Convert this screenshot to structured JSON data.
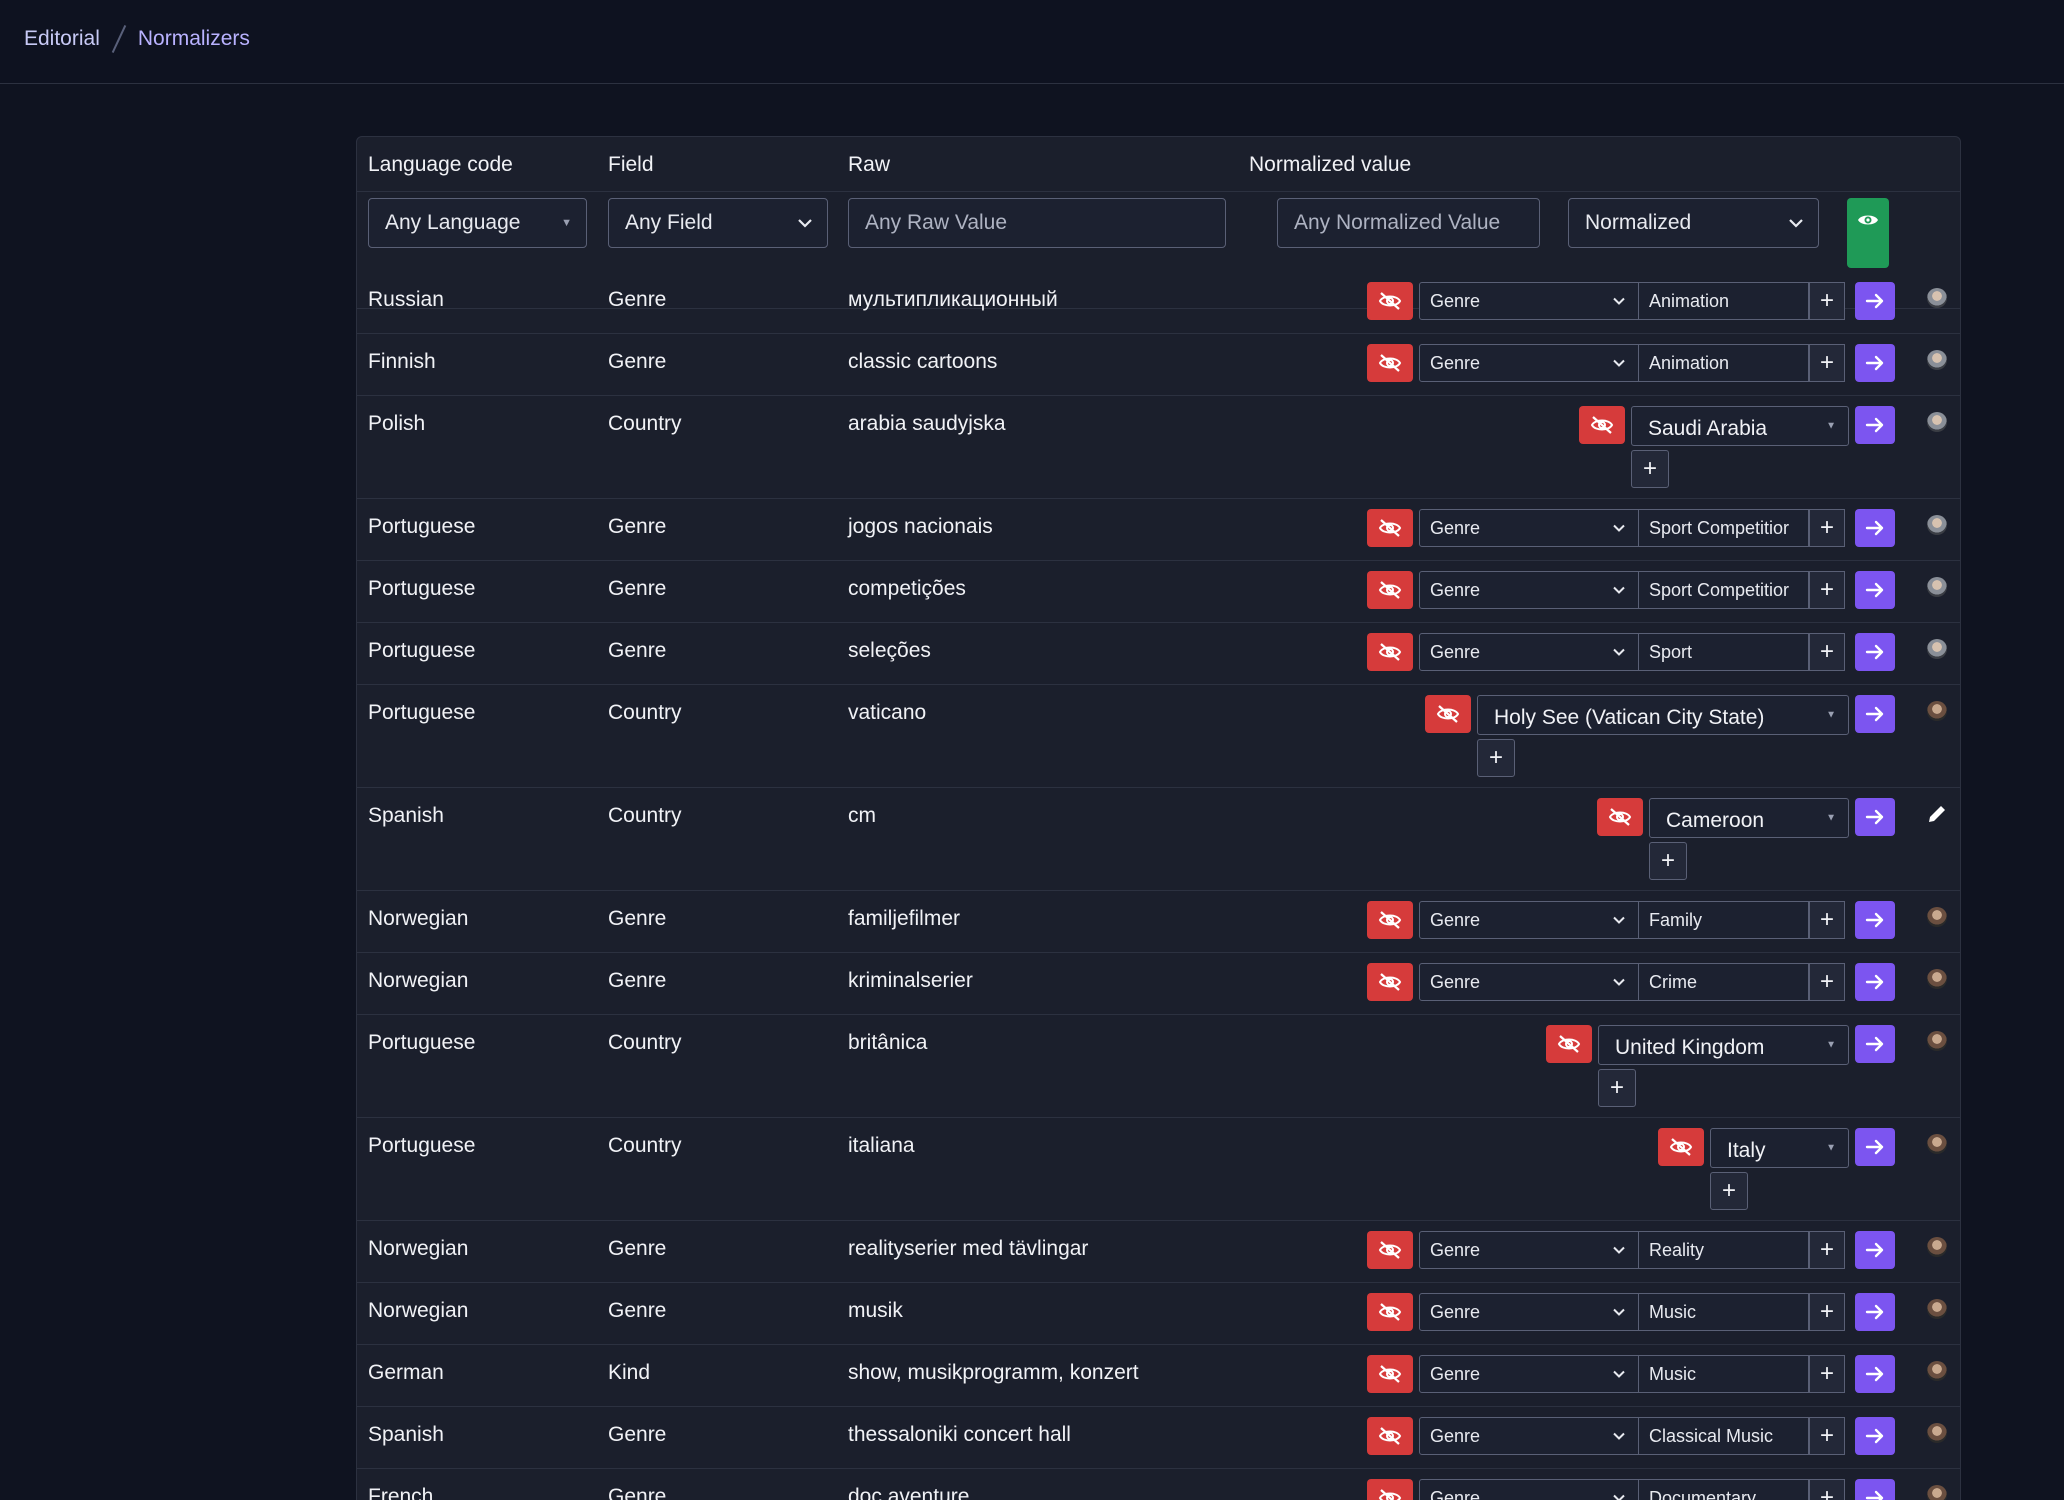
{
  "breadcrumb": {
    "parent": "Editorial",
    "current": "Normalizers"
  },
  "table": {
    "headers": {
      "language": "Language code",
      "field": "Field",
      "raw": "Raw",
      "normalized": "Normalized value"
    },
    "filters": {
      "language": "Any Language",
      "field": "Any Field",
      "raw_placeholder": "Any Raw Value",
      "normalized_placeholder": "Any Normalized Value",
      "status": "Normalized"
    },
    "genre_select_label": "Genre",
    "rows": [
      {
        "language": "Russian",
        "field": "Genre",
        "raw": "мультипликационный",
        "kind": "genre",
        "value": "Animation",
        "avatar": "b"
      },
      {
        "language": "Finnish",
        "field": "Genre",
        "raw": "classic cartoons",
        "kind": "genre",
        "value": "Animation",
        "avatar": "b"
      },
      {
        "language": "Polish",
        "field": "Country",
        "raw": "arabia saudyjska",
        "kind": "country",
        "value": "Saudi Arabia",
        "avatar": "b"
      },
      {
        "language": "Portuguese",
        "field": "Genre",
        "raw": "jogos nacionais",
        "kind": "genre",
        "value": "Sport Competitior",
        "avatar": "b"
      },
      {
        "language": "Portuguese",
        "field": "Genre",
        "raw": "competições",
        "kind": "genre",
        "value": "Sport Competitior",
        "avatar": "b"
      },
      {
        "language": "Portuguese",
        "field": "Genre",
        "raw": "seleções",
        "kind": "genre",
        "value": "Sport",
        "avatar": "b"
      },
      {
        "language": "Portuguese",
        "field": "Country",
        "raw": "vaticano",
        "kind": "country",
        "value": "Holy See (Vatican City State)",
        "avatar": "a"
      },
      {
        "language": "Spanish",
        "field": "Country",
        "raw": "cm",
        "kind": "country",
        "value": "Cameroon",
        "avatar": "edit"
      },
      {
        "language": "Norwegian",
        "field": "Genre",
        "raw": "familjefilmer",
        "kind": "genre",
        "value": "Family",
        "avatar": "a"
      },
      {
        "language": "Norwegian",
        "field": "Genre",
        "raw": "kriminalserier",
        "kind": "genre",
        "value": "Crime",
        "avatar": "a"
      },
      {
        "language": "Portuguese",
        "field": "Country",
        "raw": "britânica",
        "kind": "country",
        "value": "United Kingdom",
        "avatar": "a"
      },
      {
        "language": "Portuguese",
        "field": "Country",
        "raw": "italiana",
        "kind": "country",
        "value": "Italy",
        "avatar": "a"
      },
      {
        "language": "Norwegian",
        "field": "Genre",
        "raw": "realityserier med tävlingar",
        "kind": "genre",
        "value": "Reality",
        "avatar": "a"
      },
      {
        "language": "Norwegian",
        "field": "Genre",
        "raw": "musik",
        "kind": "genre",
        "value": "Music",
        "avatar": "a"
      },
      {
        "language": "German",
        "field": "Kind",
        "raw": "show, musikprogramm, konzert",
        "kind": "genre",
        "value": "Music",
        "avatar": "a"
      },
      {
        "language": "Spanish",
        "field": "Genre",
        "raw": "thessaloniki concert hall",
        "kind": "genre",
        "value": "Classical Music",
        "avatar": "a"
      },
      {
        "language": "French",
        "field": "Genre",
        "raw": "doc aventure",
        "kind": "genre",
        "value": "Documentary",
        "avatar": "a"
      }
    ]
  },
  "colors": {
    "hide": "#d63b3b",
    "apply": "#7c55f0",
    "show": "#1f9a57",
    "background": "#0f1320"
  },
  "icons": {
    "hide": "eye-slash-icon",
    "show": "eye-icon",
    "apply": "arrow-right-icon",
    "add": "plus-icon",
    "edit": "pencil-icon",
    "dropdown": "chevron-down-icon"
  }
}
